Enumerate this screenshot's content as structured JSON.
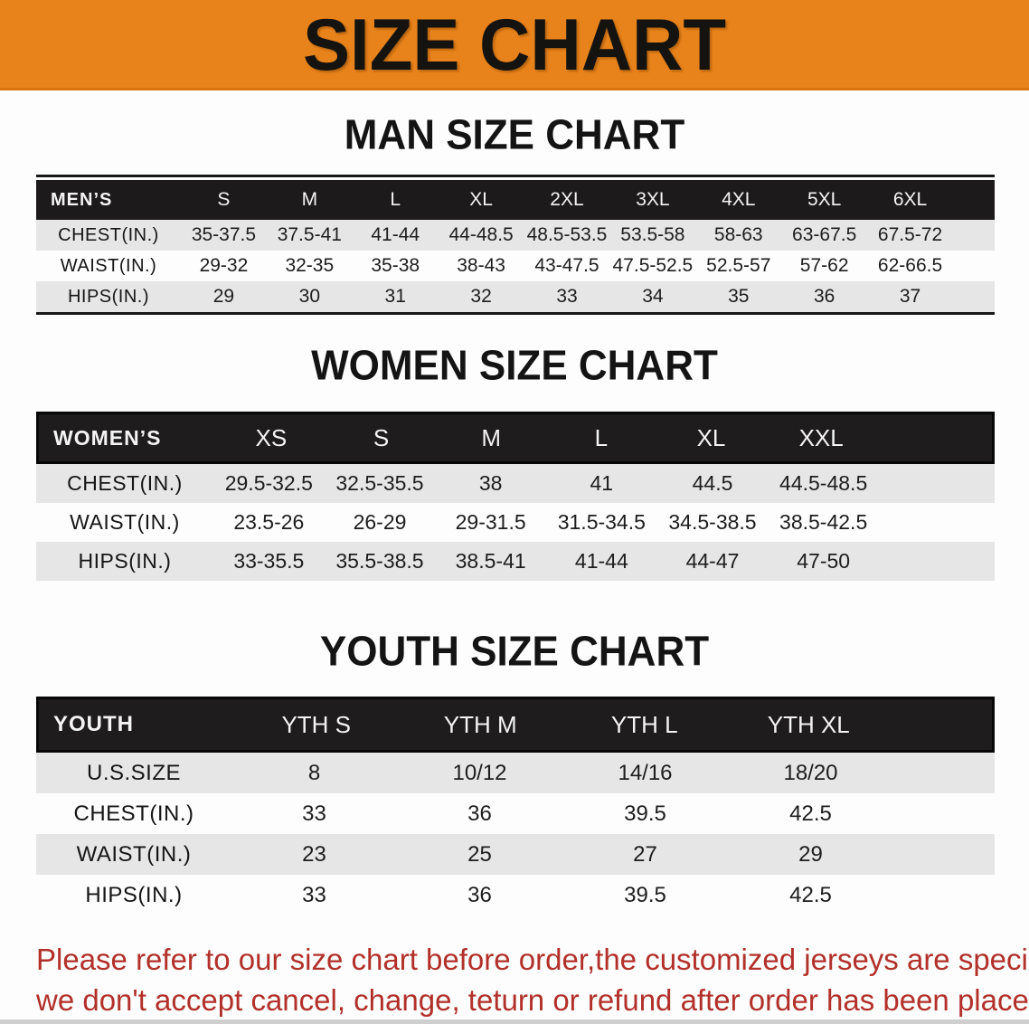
{
  "banner": {
    "title": "SIZE CHART",
    "bg_color": "#e8821a"
  },
  "sections": {
    "man": {
      "heading": "MAN SIZE CHART"
    },
    "women": {
      "heading": "WOMEN SIZE CHART"
    },
    "youth": {
      "heading": "YOUTH SIZE CHART"
    }
  },
  "tables": {
    "mens": {
      "corner": "MEN’S",
      "columns": [
        "S",
        "M",
        "L",
        "XL",
        "2XL",
        "3XL",
        "4XL",
        "5XL",
        "6XL"
      ],
      "rows": [
        {
          "label": "CHEST(IN.)",
          "values": [
            "35-37.5",
            "37.5-41",
            "41-44",
            "44-48.5",
            "48.5-53.5",
            "53.5-58",
            "58-63",
            "63-67.5",
            "67.5-72"
          ]
        },
        {
          "label": "WAIST(IN.)",
          "values": [
            "29-32",
            "32-35",
            "35-38",
            "38-43",
            "43-47.5",
            "47.5-52.5",
            "52.5-57",
            "57-62",
            "62-66.5"
          ]
        },
        {
          "label": "HIPS(IN.)",
          "values": [
            "29",
            "30",
            "31",
            "32",
            "33",
            "34",
            "35",
            "36",
            "37"
          ]
        }
      ]
    },
    "womens": {
      "corner": "WOMEN’S",
      "columns": [
        "XS",
        "S",
        "M",
        "L",
        "XL",
        "XXL"
      ],
      "rows": [
        {
          "label": "CHEST(IN.)",
          "values": [
            "29.5-32.5",
            "32.5-35.5",
            "38",
            "41",
            "44.5",
            "44.5-48.5"
          ]
        },
        {
          "label": "WAIST(IN.)",
          "values": [
            "23.5-26",
            "26-29",
            "29-31.5",
            "31.5-34.5",
            "34.5-38.5",
            "38.5-42.5"
          ]
        },
        {
          "label": "HIPS(IN.)",
          "values": [
            "33-35.5",
            "35.5-38.5",
            "38.5-41",
            "41-44",
            "44-47",
            "47-50"
          ]
        }
      ]
    },
    "youth": {
      "corner": "YOUTH",
      "columns": [
        "YTH S",
        "YTH M",
        "YTH L",
        "YTH XL"
      ],
      "rows": [
        {
          "label": "U.S.SIZE",
          "values": [
            "8",
            "10/12",
            "14/16",
            "18/20"
          ]
        },
        {
          "label": "CHEST(IN.)",
          "values": [
            "33",
            "36",
            "39.5",
            "42.5"
          ]
        },
        {
          "label": "WAIST(IN.)",
          "values": [
            "23",
            "25",
            "27",
            "29"
          ]
        },
        {
          "label": "HIPS(IN.)",
          "values": [
            "33",
            "36",
            "39.5",
            "42.5"
          ]
        }
      ]
    }
  },
  "note": {
    "color": "#b2302a",
    "lines": [
      "Please refer to our size chart before order,the customized jerseys are special products,",
      "we don't accept cancel, change, teturn or refund after order has been placed!"
    ]
  }
}
